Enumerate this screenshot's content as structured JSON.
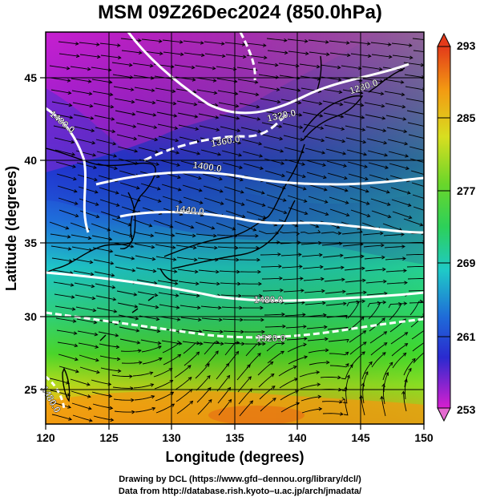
{
  "title": "MSM 09Z26Dec2024 (850.0hPa)",
  "x_axis": {
    "label": "Longitude (degrees)",
    "ticks": [
      "120",
      "125",
      "130",
      "135",
      "140",
      "145",
      "150"
    ]
  },
  "y_axis": {
    "label": "Latitude  (degrees)",
    "ticks": [
      "25",
      "30",
      "35",
      "40",
      "45"
    ]
  },
  "colorbar": {
    "ticks": [
      "293",
      "285",
      "277",
      "269",
      "261",
      "253"
    ]
  },
  "contours": [
    {
      "label": "1280.0"
    },
    {
      "label": "1320.0"
    },
    {
      "label": "1360.0"
    },
    {
      "label": "1400.0"
    },
    {
      "label": "1440.0"
    },
    {
      "label": "1480.0"
    },
    {
      "label": "1480.0"
    },
    {
      "label": "1520.0"
    },
    {
      "label": "1480.0"
    }
  ],
  "footer": {
    "line1": "Drawing by DCL (https://www.gfd–dennou.org/library/dcl/)",
    "line2": "Data from http://database.rish.kyoto–u.ac.jp/arch/jmadata/"
  },
  "colors": {
    "magenta": "#d81cd0",
    "purple": "#6a1fcf",
    "blue": "#1e3fd6",
    "cyan": "#1ec8c8",
    "green": "#3ad23a",
    "yellow": "#d8e020",
    "orange": "#f5a010",
    "red": "#e53a1a"
  }
}
